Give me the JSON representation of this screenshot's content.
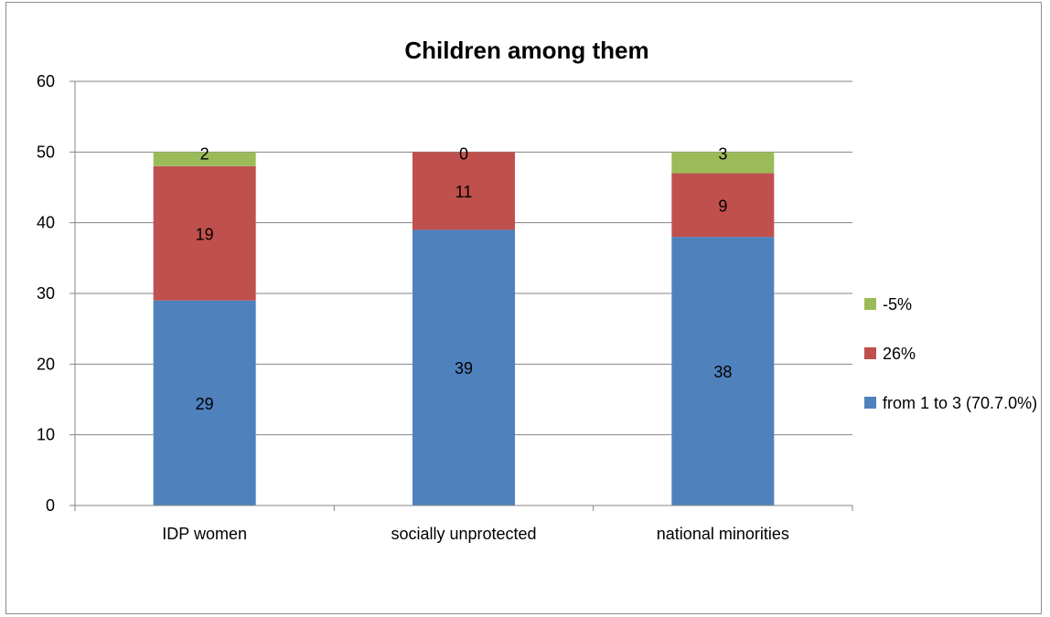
{
  "chart_data": {
    "type": "bar",
    "stacked": true,
    "title": "Children among them",
    "xlabel": "",
    "ylabel": "",
    "categories": [
      "IDP women",
      "socially unprotected",
      "national minorities"
    ],
    "ylim": [
      0,
      60
    ],
    "yticks": [
      0,
      10,
      20,
      30,
      40,
      50,
      60
    ],
    "grid": true,
    "legend_position": "right",
    "series": [
      {
        "name": "from 1 to 3 (70.7.0%)",
        "values": [
          29,
          39,
          38
        ],
        "color": "#4f81bd"
      },
      {
        "name": "26%",
        "values": [
          19,
          11,
          9
        ],
        "color": "#c0504d"
      },
      {
        "name": "-5%",
        "values": [
          2,
          0,
          3
        ],
        "color": "#9bbb59"
      }
    ]
  }
}
